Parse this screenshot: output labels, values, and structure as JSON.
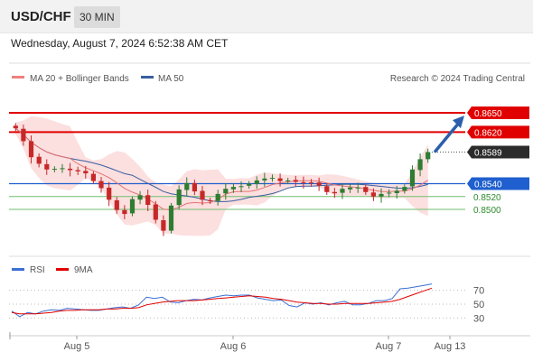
{
  "header": {
    "symbol": "USD/CHF",
    "timeframe": "30 MIN",
    "datetime": "Wednesday, August 7, 2024 6:52:38 AM CET"
  },
  "colors": {
    "bullish": "#2e7d32",
    "bearish": "#c62828",
    "ma20": "#e57373",
    "ma50": "#3a5fa0",
    "bollinger_fill": "#fcdcdc",
    "resistance": "#e00000",
    "support": "#1f5fcf",
    "target": "#6fbf6f",
    "arrow": "#2b5fab",
    "rsi": "#3b6fd4",
    "rsi_ma": "#e00000"
  },
  "chart_data": [
    {
      "type": "candlestick",
      "title": "USD/CHF",
      "timeframe": "30 MIN",
      "ylim": [
        0.843,
        0.8685
      ],
      "x_ticks": [
        "Aug 5",
        "Aug 6",
        "Aug 7",
        "Aug 13"
      ],
      "legend": [
        {
          "label": "MA 20 + Bollinger Bands",
          "color": "#f08080"
        },
        {
          "label": "MA 50",
          "color": "#3a5fa0"
        }
      ],
      "credit": "Research © 2024 Trading Central",
      "levels": [
        {
          "value": 0.865,
          "label": "0.8650",
          "role": "resistance",
          "style": "thick-red",
          "tag": "red"
        },
        {
          "value": 0.862,
          "label": "0.8620",
          "role": "resistance",
          "style": "thick-red",
          "tag": "red"
        },
        {
          "value": 0.8589,
          "label": "0.8589",
          "role": "last-price",
          "style": "dotted",
          "tag": "dark"
        },
        {
          "value": 0.854,
          "label": "0.8540",
          "role": "pivot",
          "style": "blue",
          "tag": "blue"
        },
        {
          "value": 0.852,
          "label": "0.8520",
          "role": "target",
          "style": "green",
          "tag": "none"
        },
        {
          "value": 0.85,
          "label": "0.8500",
          "role": "target",
          "style": "green",
          "tag": "none"
        }
      ],
      "close_path": [
        0.8626,
        0.8606,
        0.8581,
        0.8571,
        0.8562,
        0.8563,
        0.8564,
        0.8561,
        0.8559,
        0.8556,
        0.8544,
        0.8533,
        0.8515,
        0.8499,
        0.8493,
        0.8516,
        0.8522,
        0.8507,
        0.8484,
        0.8467,
        0.8506,
        0.8531,
        0.8541,
        0.8528,
        0.8515,
        0.8513,
        0.8524,
        0.8532,
        0.8535,
        0.8536,
        0.854,
        0.8545,
        0.8548,
        0.8549,
        0.8544,
        0.8545,
        0.8543,
        0.8542,
        0.8541,
        0.8537,
        0.8527,
        0.8525,
        0.8532,
        0.8534,
        0.8534,
        0.8527,
        0.852,
        0.8524,
        0.8526,
        0.8529,
        0.8535,
        0.8562,
        0.8578,
        0.8589
      ],
      "forecast_arrow": {
        "from": 0.8589,
        "to": 0.864
      }
    },
    {
      "type": "line",
      "title": "RSI",
      "ylim": [
        15,
        85
      ],
      "y_ticks": [
        70,
        50,
        30
      ],
      "series": [
        {
          "name": "RSI",
          "color": "#3b6fd4",
          "values": [
            40,
            32,
            38,
            36,
            40,
            42,
            41,
            44,
            43,
            42,
            41,
            41,
            43,
            45,
            46,
            44,
            49,
            60,
            58,
            60,
            53,
            52,
            55,
            57,
            56,
            59,
            61,
            63,
            62,
            63,
            63,
            59,
            57,
            55,
            56,
            48,
            46,
            52,
            50,
            52,
            49,
            52,
            54,
            49,
            49,
            51,
            55,
            55,
            58,
            72,
            73,
            75,
            77,
            79
          ]
        },
        {
          "name": "9MA",
          "color": "#e00000",
          "values": [
            38,
            36,
            36,
            36,
            37,
            38,
            40,
            41,
            41,
            42,
            42,
            42,
            43,
            43,
            44,
            44,
            45,
            49,
            51,
            53,
            54,
            55,
            55,
            55,
            56,
            57,
            58,
            59,
            60,
            61,
            62,
            61,
            60,
            58,
            57,
            55,
            53,
            52,
            51,
            51,
            50,
            50,
            51,
            51,
            51,
            51,
            52,
            53,
            54,
            57,
            61,
            65,
            69,
            73
          ]
        }
      ]
    }
  ]
}
